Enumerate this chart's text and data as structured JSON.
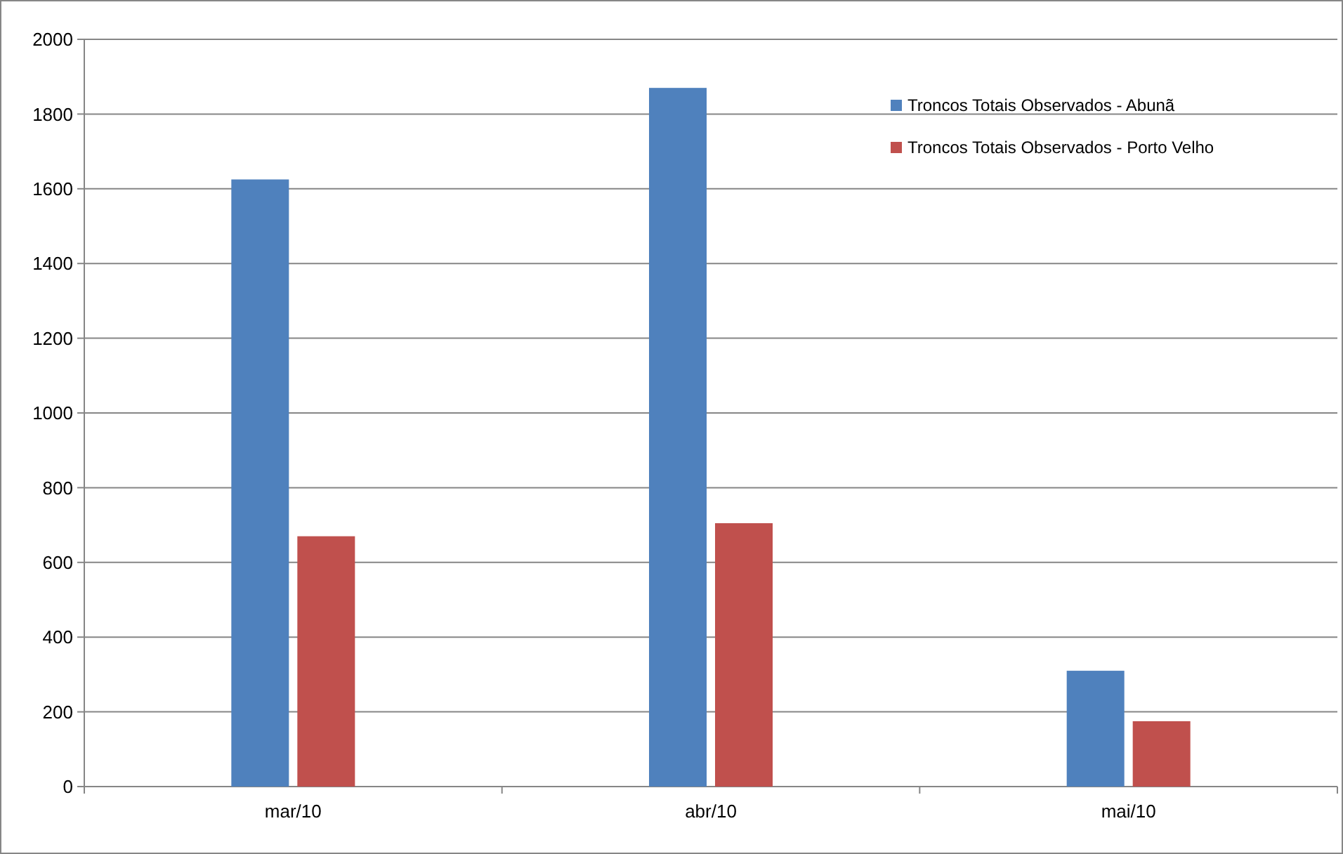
{
  "chart_data": {
    "type": "bar",
    "categories": [
      "mar/10",
      "abr/10",
      "mai/10"
    ],
    "series": [
      {
        "name": "Troncos Totais Observados - Abunã",
        "color": "#4f81bd",
        "values": [
          1625,
          1870,
          310
        ]
      },
      {
        "name": "Troncos Totais Observados - Porto Velho",
        "color": "#c0504d",
        "values": [
          670,
          705,
          175
        ]
      }
    ],
    "ylim": [
      0,
      2000
    ],
    "yticks": [
      0,
      200,
      400,
      600,
      800,
      1000,
      1200,
      1400,
      1600,
      1800,
      2000
    ],
    "grid": "y",
    "legend": "top right"
  }
}
